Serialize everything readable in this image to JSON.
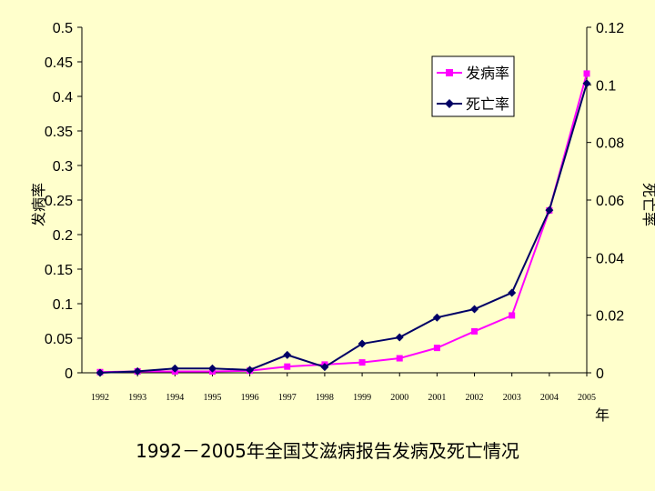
{
  "caption": "1992－2005年全国艾滋病报告发病及死亡情况",
  "chart_data": {
    "type": "line",
    "title": "1992－2005年全国艾滋病报告发病及死亡情况",
    "xlabel": "年",
    "ylabel_left": "发病率",
    "ylabel_right": "死亡率",
    "ylim_left": [
      0,
      0.5
    ],
    "ylim_right": [
      0,
      0.12
    ],
    "yticks_left": [
      "0",
      "0.05",
      "0.1",
      "0.15",
      "0.2",
      "0.25",
      "0.3",
      "0.35",
      "0.4",
      "0.45",
      "0.5"
    ],
    "yticks_right": [
      "0",
      "0.02",
      "0.04",
      "0.06",
      "0.08",
      "0.1",
      "0.12"
    ],
    "x": [
      "1992",
      "1993",
      "1994",
      "1995",
      "1996",
      "1997",
      "1998",
      "1999",
      "2000",
      "2001",
      "2002",
      "2003",
      "2004",
      "2005"
    ],
    "grid": false,
    "legend_position": "top-right",
    "series": [
      {
        "name": "发病率",
        "axis": "left",
        "color": "#FF00FF",
        "marker": "square",
        "values": [
          0.001,
          0.002,
          0.002,
          0.002,
          0.003,
          0.009,
          0.012,
          0.015,
          0.021,
          0.036,
          0.06,
          0.083,
          0.235,
          0.433
        ]
      },
      {
        "name": "死亡率",
        "axis": "right",
        "color": "#000066",
        "marker": "diamond",
        "values": [
          0.0,
          0.0005,
          0.0015,
          0.0015,
          0.001,
          0.0062,
          0.002,
          0.0101,
          0.0123,
          0.0192,
          0.0221,
          0.0278,
          0.0565,
          0.1005
        ]
      }
    ]
  }
}
